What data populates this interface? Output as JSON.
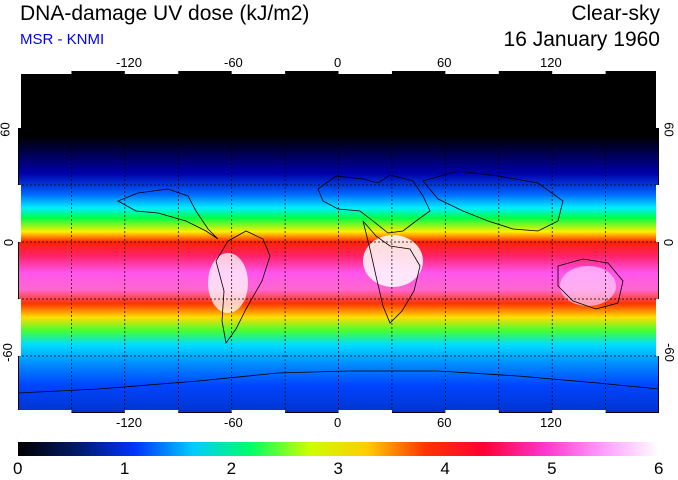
{
  "header": {
    "title": "DNA-damage UV dose (kJ/m2)",
    "source": "MSR - KNMI",
    "mode": "Clear-sky",
    "date": "16 January 1960"
  },
  "map": {
    "lon_ticks": [
      "-120",
      "-60",
      "0",
      "60",
      "120"
    ],
    "lat_ticks": [
      "60",
      "0",
      "-60"
    ],
    "lon_range": [
      -180,
      180
    ],
    "lat_range": [
      -90,
      90
    ],
    "grid": true,
    "projection": "equirectangular"
  },
  "colorbar": {
    "labels": [
      "0",
      "1",
      "2",
      "3",
      "4",
      "5",
      "6"
    ],
    "range": [
      0,
      6
    ],
    "colors": [
      "#000000",
      "#001a66",
      "#0033ff",
      "#00ccff",
      "#00ff66",
      "#ccff00",
      "#ffcc00",
      "#ff3300",
      "#ff0033",
      "#ff33cc",
      "#ff99ff",
      "#ffffff"
    ]
  }
}
